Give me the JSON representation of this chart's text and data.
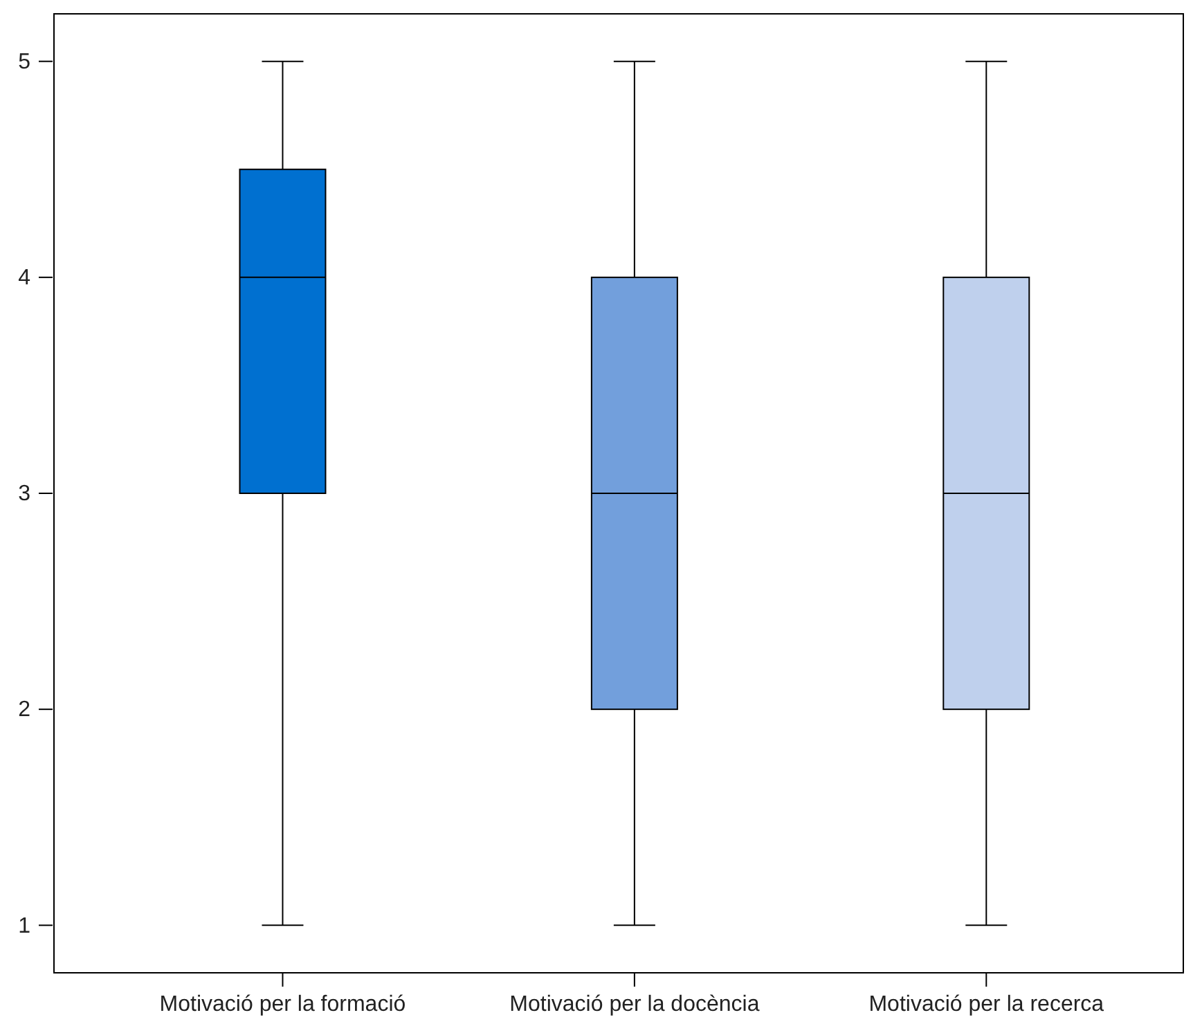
{
  "chart_data": {
    "type": "box",
    "categories": [
      "Motivació per la formació",
      "Motivació per la docència",
      "Motivació per la recerca"
    ],
    "boxes": [
      {
        "low": 1,
        "q1": 3,
        "median": 4,
        "q3": 4.5,
        "high": 5
      },
      {
        "low": 1,
        "q1": 2,
        "median": 3,
        "q3": 4,
        "high": 5
      },
      {
        "low": 1,
        "q1": 2,
        "median": 3,
        "q3": 4,
        "high": 5
      }
    ],
    "colors": [
      "#0070d0",
      "#729fdc",
      "#bfd0ed"
    ],
    "ylim": [
      0.78,
      5.22
    ],
    "yticks": [
      1,
      2,
      3,
      4,
      5
    ],
    "grid": false
  }
}
